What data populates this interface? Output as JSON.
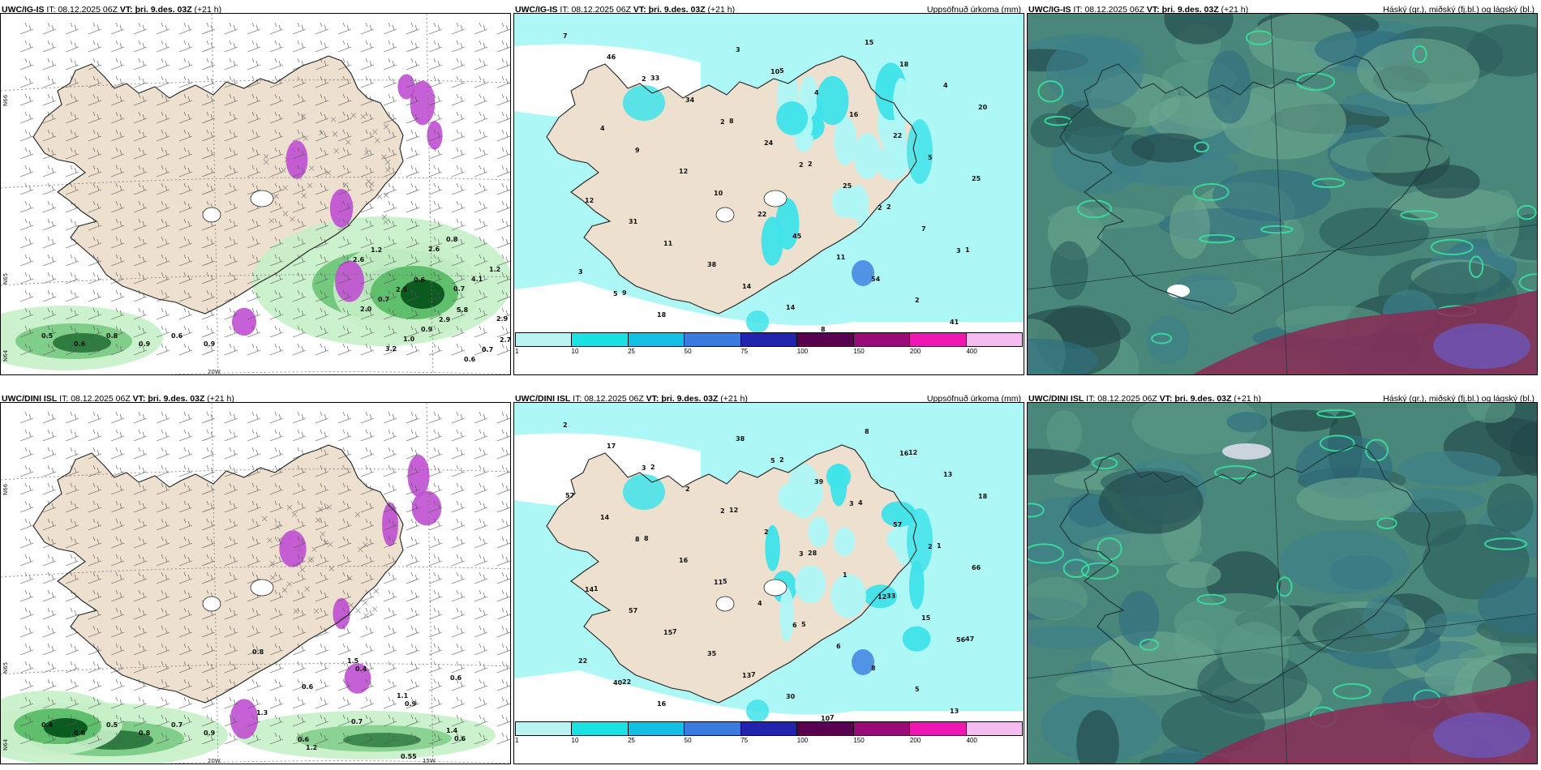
{
  "panels": [
    {
      "id": "p1",
      "model": "UWC/IG-IS",
      "it_label": "IT:",
      "it_value": "08.12.2025 06Z",
      "vt_label": "VT:",
      "vt_value": "þri. 9.des. 03Z",
      "lead": "(+21 h)",
      "right_title": "",
      "axis_labels": [
        "N66",
        "N65",
        "N64",
        "20W"
      ],
      "values": [
        "0.5",
        "0.6",
        "0.8",
        "0.9",
        "0.6",
        "0.9",
        "0.7",
        "2.9",
        "3.2",
        "2.6",
        "4.1",
        "2.0",
        "1.0",
        "0.8",
        "1.2",
        "0.7",
        "0.9",
        "0.6",
        "2.6",
        "2.5",
        "2.9",
        "0.7",
        "1.2",
        "0.6",
        "5.8",
        "2.7"
      ]
    },
    {
      "id": "p2",
      "model": "UWC/IG-IS",
      "it_label": "IT:",
      "it_value": "08.12.2025 06Z",
      "vt_label": "VT:",
      "vt_value": "þri. 9.des. 03Z",
      "lead": "(+21 h)",
      "right_title": "Uppsöfnuð úrkoma (mm)",
      "axis_labels": [],
      "values": [
        "7",
        "2",
        "2",
        "2",
        "2",
        "3",
        "5",
        "13",
        "10",
        "16",
        "5",
        "12",
        "11",
        "14",
        "8",
        "18",
        "20",
        "9",
        "10",
        "45",
        "54",
        "41",
        "46",
        "34",
        "24",
        "25",
        "7",
        "3",
        "18",
        "3",
        "4",
        "22",
        "25",
        "31",
        "38",
        "14",
        "15",
        "4",
        "4",
        "12",
        "22",
        "11",
        "2",
        "4",
        "33",
        "8",
        "2",
        "2",
        "1",
        "9",
        "6",
        "5"
      ],
      "colorbar": {
        "ticks": [
          "1",
          "10",
          "25",
          "50",
          "75",
          "100",
          "150",
          "200",
          "400"
        ],
        "colors": [
          "#b9f4f4",
          "#19e1e6",
          "#12c0e3",
          "#3a7be0",
          "#2224b0",
          "#5a0050",
          "#9a0a7a",
          "#ee17b4",
          "#f4bcef"
        ]
      }
    },
    {
      "id": "p3",
      "model": "UWC/IG-IS",
      "it_label": "IT:",
      "it_value": "08.12.2025 06Z",
      "vt_label": "VT:",
      "vt_value": "þri. 9.des. 03Z",
      "lead": "(+21 h)",
      "right_title": "Háský (gr.), miðský (fj.bl.) og lágský (bl.)",
      "axis_labels": [],
      "values": []
    },
    {
      "id": "p4",
      "model": "UWC/DINI ISL",
      "it_label": "IT:",
      "it_value": "08.12.2025 06Z",
      "vt_label": "VT:",
      "vt_value": "þri. 9.des. 03Z",
      "lead": "(+21 h)",
      "right_title": "",
      "axis_labels": [
        "N66",
        "N65",
        "N64",
        "20W",
        "15W"
      ],
      "values": [
        "0.4",
        "0.6",
        "0.5",
        "0.8",
        "0.7",
        "0.9",
        "0.6",
        "1.5",
        "1.1",
        "1.4",
        "0.8",
        "0.6",
        "0.7",
        "0.55",
        "0.6",
        "1.3",
        "1.2",
        "0.4",
        "0.9",
        "0.6"
      ]
    },
    {
      "id": "p5",
      "model": "UWC/DINI ISL",
      "it_label": "IT:",
      "it_value": "08.12.2025 06Z",
      "vt_label": "VT:",
      "vt_value": "þri. 9.des. 03Z",
      "lead": "(+21 h)",
      "right_title": "Uppsöfnuð úrkoma (mm)",
      "axis_labels": [],
      "values": [
        "2",
        "3",
        "2",
        "3",
        "12",
        "56",
        "40",
        "13",
        "5",
        "3",
        "2",
        "14",
        "15",
        "13",
        "10",
        "16",
        "18",
        "8",
        "11",
        "6",
        "8",
        "13",
        "17",
        "2",
        "2",
        "1",
        "15",
        "22",
        "16",
        "38",
        "39",
        "57",
        "66",
        "57",
        "35",
        "30",
        "8",
        "13",
        "14",
        "16",
        "4",
        "6",
        "5",
        "8",
        "2",
        "12",
        "28",
        "33",
        "47",
        "22",
        "5",
        "2",
        "4",
        "1",
        "1",
        "7",
        "7",
        "7",
        "12",
        "57",
        "8",
        "5",
        "5"
      ],
      "colorbar": {
        "ticks": [
          "1",
          "10",
          "25",
          "50",
          "75",
          "100",
          "150",
          "200",
          "400"
        ],
        "colors": [
          "#b9f4f4",
          "#19e1e6",
          "#12c0e3",
          "#3a7be0",
          "#2224b0",
          "#5a0050",
          "#9a0a7a",
          "#ee17b4",
          "#f4bcef"
        ]
      }
    },
    {
      "id": "p6",
      "model": "UWC/DINI ISL",
      "it_label": "IT:",
      "it_value": "08.12.2025 06Z",
      "vt_label": "VT:",
      "vt_value": "þri. 9.des. 03Z",
      "lead": "(+21 h)",
      "right_title": "Háský (gr.), miðský (fj.bl.) og lágský (bl.)",
      "axis_labels": [],
      "values": []
    }
  ],
  "colors": {
    "land": "#ede0cf",
    "sea": "#ffffff",
    "precip_light": "#aef7f7",
    "precip_mid": "#3fe3ea",
    "green_light": "#c6f0c8",
    "green_dark": "#0b5a1f",
    "purple": "#c04fd2",
    "cloud_base": "#49877a",
    "cloud_dark": "#27504f"
  }
}
